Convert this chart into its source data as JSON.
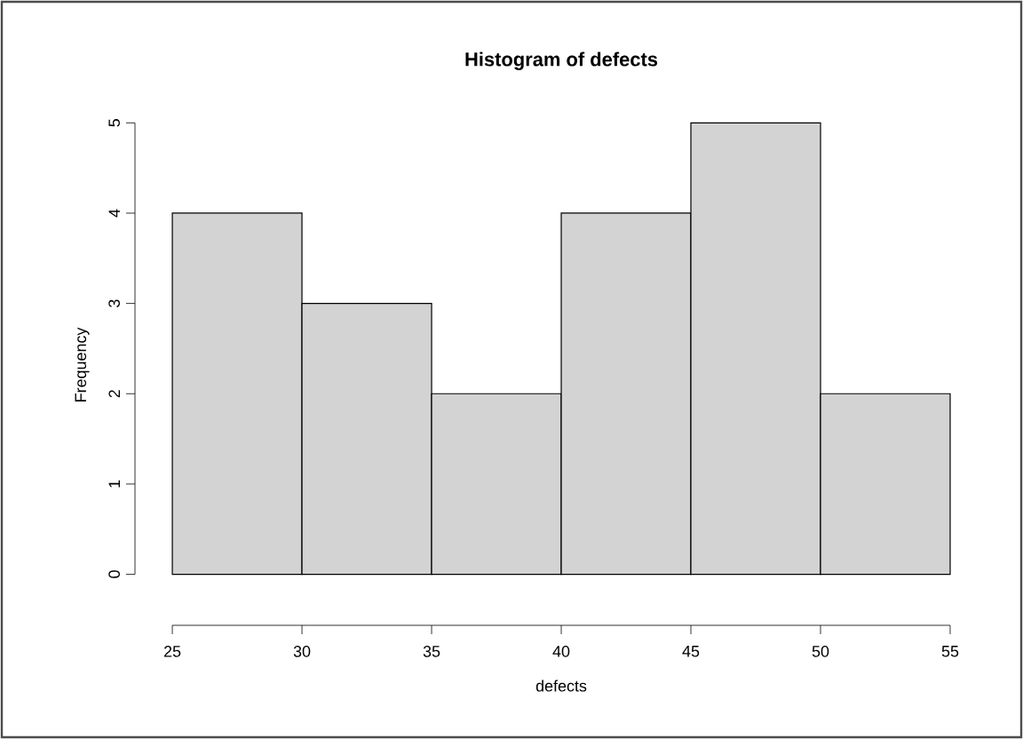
{
  "chart_data": {
    "type": "histogram",
    "title": "Histogram of defects",
    "xlabel": "defects",
    "ylabel": "Frequency",
    "bins": [
      25,
      30,
      35,
      40,
      45,
      50,
      55
    ],
    "values": [
      4,
      3,
      2,
      4,
      5,
      2
    ],
    "color": "#d3d3d3",
    "xlim": [
      25,
      55
    ],
    "xticks": [
      25,
      30,
      35,
      40,
      45,
      50,
      55
    ],
    "ylim": [
      0,
      5
    ],
    "yticks": [
      0,
      1,
      2,
      3,
      4,
      5
    ],
    "grid": false
  }
}
